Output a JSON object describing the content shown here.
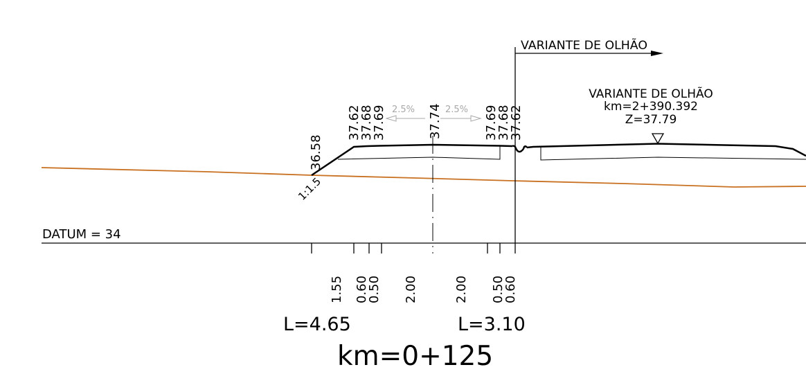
{
  "top_variant_label": "VARIANTE DE OLHÃO",
  "station_info": {
    "name": "VARIANTE DE OLHÃO",
    "km": "km=2+390.392",
    "z": "Z=37.79"
  },
  "elevations": {
    "left_toe": "36.58",
    "left_shoulder": "37.62",
    "left_edge_1": "37.68",
    "left_edge_2": "37.69",
    "axis": "37.74",
    "right_edge_2": "37.69",
    "right_edge_1": "37.68",
    "right_shoulder": "37.62"
  },
  "slopes": {
    "left": "2.5%",
    "right": "2.5%",
    "embankment": "1:1.5"
  },
  "datum": "DATUM  =  34",
  "distances": {
    "left": [
      "1.55",
      "0.60",
      "0.50",
      "2.00"
    ],
    "right": [
      "2.00",
      "0.50",
      "0.60"
    ]
  },
  "widths": {
    "left": "L=4.65",
    "right": "L=3.10"
  },
  "profile_km": "km=0+125",
  "colors": {
    "terrain": "#c87020",
    "slope_arrow": "#a8a8a8",
    "lines": "#000000"
  }
}
